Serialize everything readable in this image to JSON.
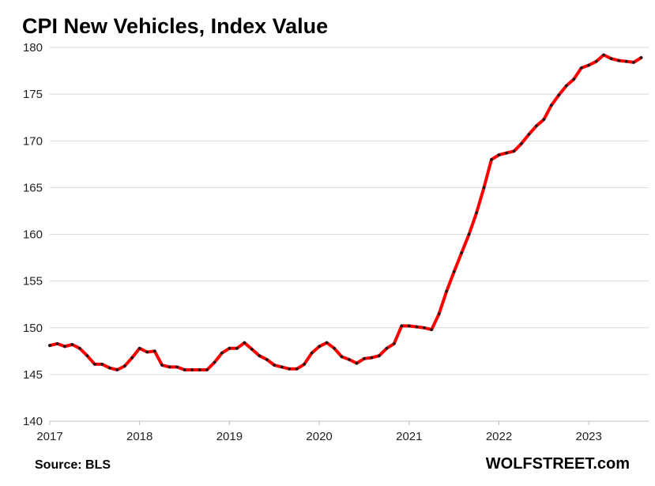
{
  "chart_data": {
    "type": "line",
    "title": "CPI New Vehicles, Index Value",
    "xlabel": "",
    "ylabel": "",
    "x_ticks": [
      "2017",
      "2018",
      "2019",
      "2020",
      "2021",
      "2022",
      "2023"
    ],
    "y_ticks": [
      140,
      145,
      150,
      155,
      160,
      165,
      170,
      175,
      180
    ],
    "xlim": [
      "2017-01",
      "2023-09"
    ],
    "ylim": [
      140,
      180
    ],
    "grid": "horizontal",
    "legend": "none",
    "series": [
      {
        "color": "#ff0000",
        "marker_color": "#1a1a1a",
        "x": [
          "2017-01",
          "2017-02",
          "2017-03",
          "2017-04",
          "2017-05",
          "2017-06",
          "2017-07",
          "2017-08",
          "2017-09",
          "2017-10",
          "2017-11",
          "2017-12",
          "2018-01",
          "2018-02",
          "2018-03",
          "2018-04",
          "2018-05",
          "2018-06",
          "2018-07",
          "2018-08",
          "2018-09",
          "2018-10",
          "2018-11",
          "2018-12",
          "2019-01",
          "2019-02",
          "2019-03",
          "2019-04",
          "2019-05",
          "2019-06",
          "2019-07",
          "2019-08",
          "2019-09",
          "2019-10",
          "2019-11",
          "2019-12",
          "2020-01",
          "2020-02",
          "2020-03",
          "2020-04",
          "2020-05",
          "2020-06",
          "2020-07",
          "2020-08",
          "2020-09",
          "2020-10",
          "2020-11",
          "2020-12",
          "2021-01",
          "2021-02",
          "2021-03",
          "2021-04",
          "2021-05",
          "2021-06",
          "2021-07",
          "2021-08",
          "2021-09",
          "2021-10",
          "2021-11",
          "2021-12",
          "2022-01",
          "2022-02",
          "2022-03",
          "2022-04",
          "2022-05",
          "2022-06",
          "2022-07",
          "2022-08",
          "2022-09",
          "2022-10",
          "2022-11",
          "2022-12",
          "2023-01",
          "2023-02",
          "2023-03",
          "2023-04",
          "2023-05",
          "2023-06",
          "2023-07",
          "2023-08"
        ],
        "values": [
          148.1,
          148.3,
          148.0,
          148.2,
          147.8,
          147.0,
          146.1,
          146.1,
          145.7,
          145.5,
          145.9,
          146.8,
          147.8,
          147.4,
          147.5,
          146.0,
          145.8,
          145.8,
          145.5,
          145.5,
          145.5,
          145.5,
          146.3,
          147.3,
          147.8,
          147.8,
          148.4,
          147.7,
          147.0,
          146.6,
          146.0,
          145.8,
          145.6,
          145.6,
          146.1,
          147.3,
          148.0,
          148.4,
          147.8,
          146.9,
          146.6,
          146.2,
          146.7,
          146.8,
          147.0,
          147.8,
          148.3,
          150.2,
          150.2,
          150.1,
          150.0,
          149.8,
          151.5,
          153.9,
          156.0,
          158.0,
          160.0,
          162.3,
          165.0,
          168.0,
          168.5,
          168.7,
          168.9,
          169.7,
          170.7,
          171.6,
          172.3,
          173.8,
          174.9,
          175.9,
          176.6,
          177.8,
          178.1,
          178.5,
          179.2,
          178.8,
          178.6,
          178.5,
          178.4,
          178.9
        ]
      }
    ]
  },
  "footer": {
    "source": "Source: BLS",
    "brand": "WOLFSTREET.com"
  }
}
